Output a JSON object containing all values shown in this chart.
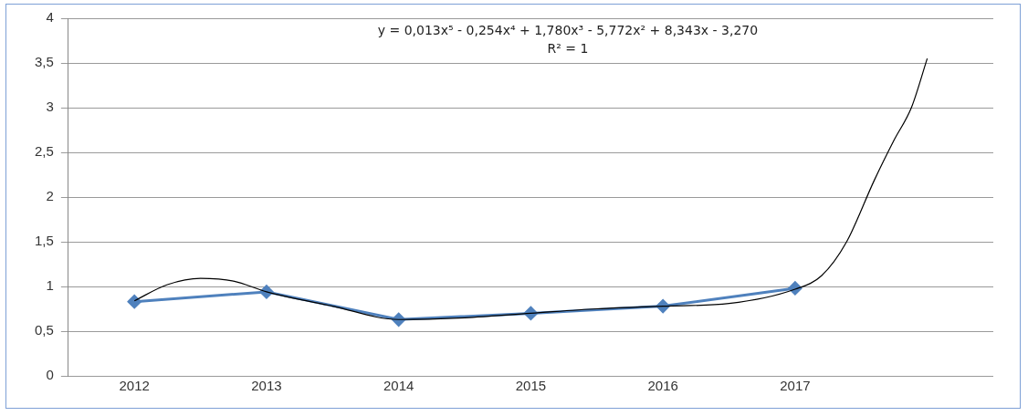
{
  "chart_data": {
    "type": "line",
    "x": [
      2012,
      2013,
      2014,
      2015,
      2016,
      2017
    ],
    "series": [
      {
        "color": "#4f81bd",
        "marker": "diamond",
        "line_style": "solid",
        "values": [
          0.83,
          0.94,
          0.63,
          0.7,
          0.78,
          0.98
        ]
      },
      {
        "color": "#000000",
        "marker": "none",
        "line_style": "solid",
        "x": [
          2012,
          2012.25,
          2012.5,
          2012.75,
          2013,
          2013.5,
          2014,
          2014.5,
          2015,
          2015.5,
          2016,
          2016.5,
          2017,
          2017.2,
          2017.39,
          2017.6,
          2017.75,
          2017.88,
          2018
        ],
        "values": [
          0.84,
          1.02,
          1.09,
          1.06,
          0.94,
          0.78,
          0.63,
          0.65,
          0.7,
          0.75,
          0.78,
          0.81,
          0.97,
          1.12,
          1.5,
          2.19,
          2.64,
          3.0,
          3.55
        ]
      }
    ],
    "xlim": [
      2011.5,
      2018.5
    ],
    "xticks": [
      2012,
      2013,
      2014,
      2015,
      2016,
      2017
    ],
    "ylim": [
      0,
      4
    ],
    "yticks": [
      0,
      {
        "value": 0.5,
        "label": "0,5"
      },
      1,
      {
        "value": 1.5,
        "label": "1,5"
      },
      2,
      {
        "value": 2.5,
        "label": "2,5"
      },
      3,
      {
        "value": 3.5,
        "label": "3,5"
      },
      4
    ],
    "grid": "y",
    "legend": false,
    "annotations": [
      "y = 0,013x⁵ - 0,254x⁴ + 1,780x³ - 5,772x² + 8,343x - 3,270",
      "R² = 1"
    ]
  }
}
